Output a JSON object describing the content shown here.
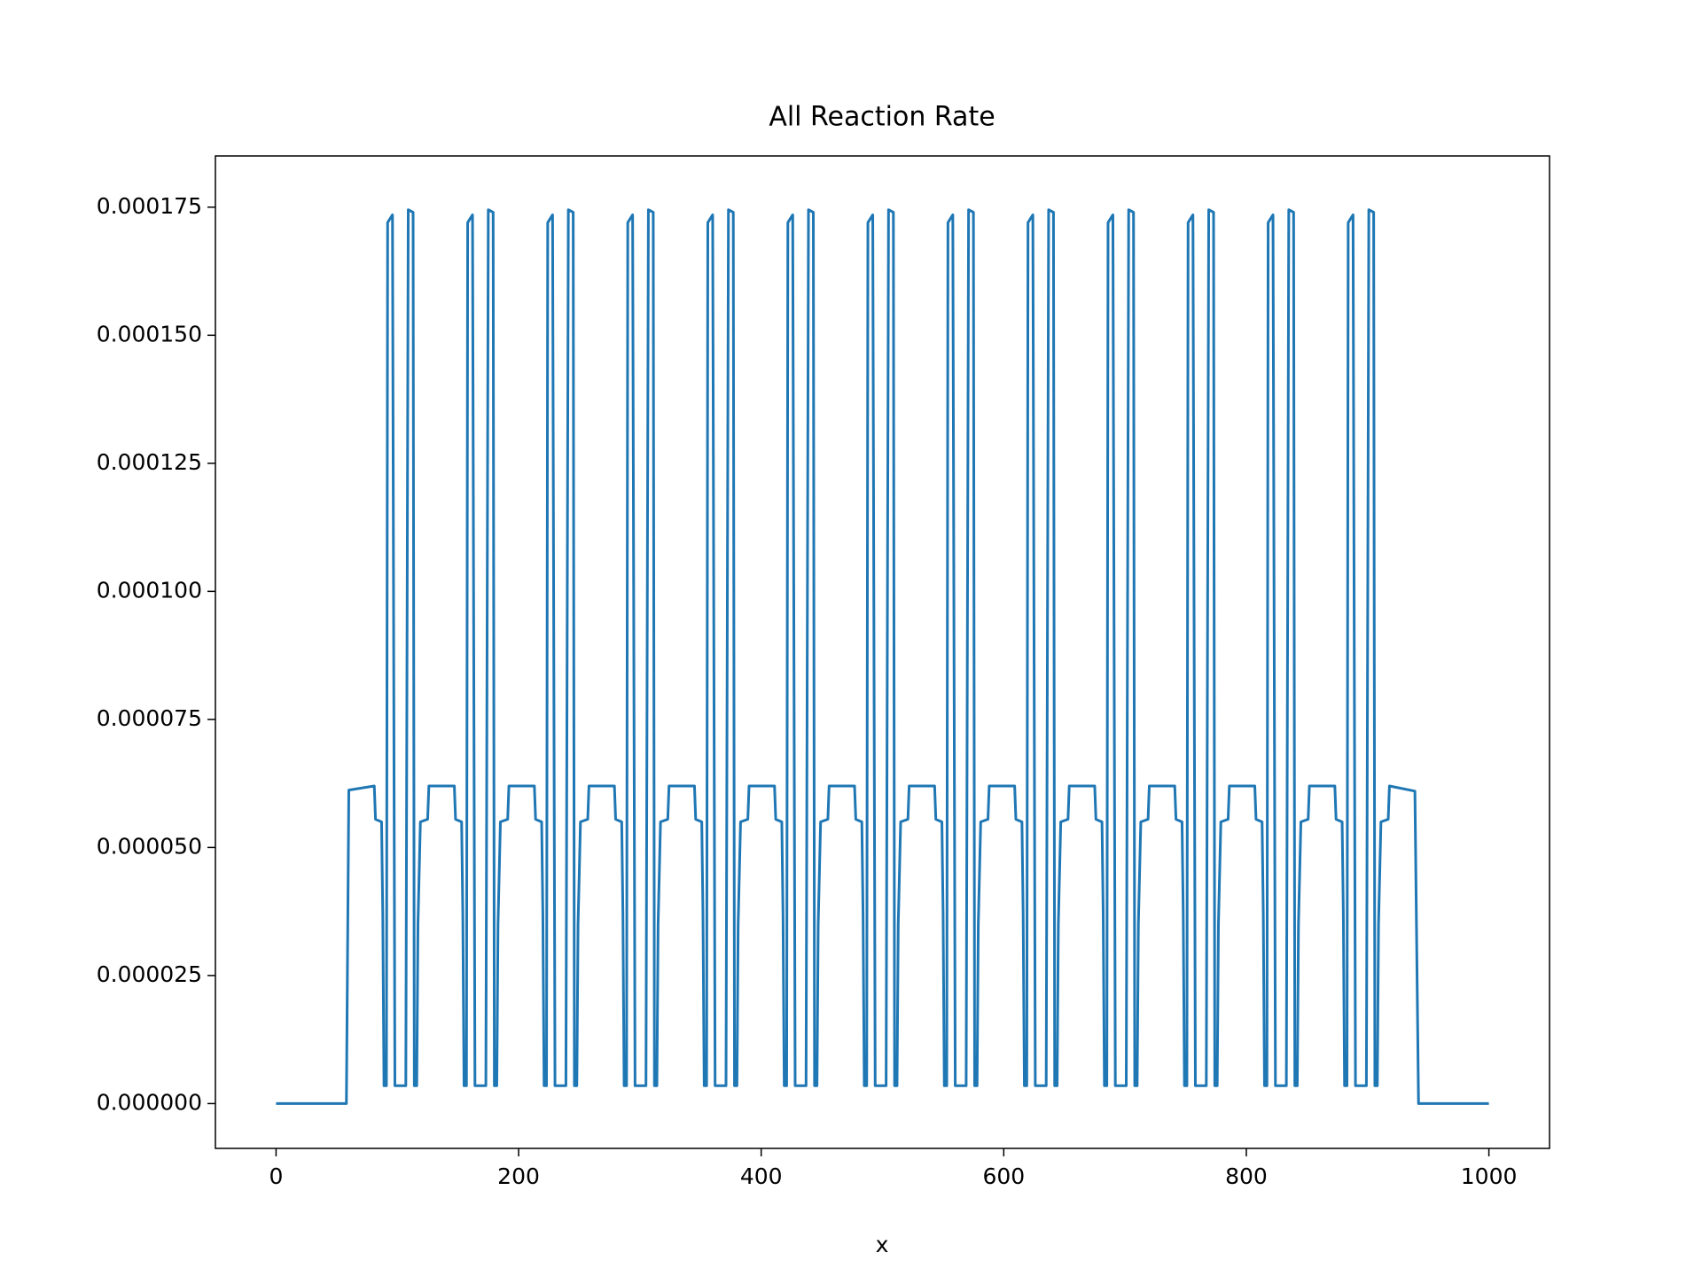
{
  "chart_data": {
    "type": "line",
    "title": "All Reaction Rate",
    "x_label": "x",
    "color": "#1f77b4",
    "x": [
      0,
      58,
      60,
      81,
      82,
      87,
      88,
      89,
      91,
      92,
      96,
      98,
      107,
      109,
      113,
      114,
      116,
      117,
      119,
      125,
      126,
      147,
      148,
      153,
      154,
      155,
      157,
      158,
      162,
      164,
      173,
      175,
      179,
      180,
      182,
      183,
      185,
      191,
      192,
      213,
      214,
      219,
      220,
      221,
      223,
      224,
      228,
      230,
      239,
      241,
      245,
      246,
      248,
      249,
      251,
      257,
      258,
      279,
      280,
      285,
      286,
      287,
      289,
      290,
      294,
      296,
      305,
      307,
      311,
      312,
      314,
      315,
      317,
      323,
      324,
      345,
      346,
      351,
      352,
      353,
      355,
      356,
      360,
      362,
      371,
      373,
      377,
      378,
      380,
      381,
      383,
      389,
      390,
      411,
      412,
      417,
      418,
      419,
      421,
      422,
      426,
      428,
      437,
      439,
      443,
      444,
      446,
      447,
      449,
      455,
      456,
      477,
      478,
      483,
      484,
      485,
      487,
      488,
      492,
      494,
      503,
      505,
      509,
      510,
      512,
      513,
      515,
      521,
      522,
      543,
      544,
      549,
      550,
      551,
      553,
      554,
      558,
      560,
      569,
      571,
      575,
      576,
      578,
      579,
      581,
      587,
      588,
      609,
      610,
      615,
      616,
      617,
      619,
      620,
      624,
      626,
      635,
      637,
      641,
      642,
      644,
      645,
      647,
      653,
      654,
      675,
      676,
      681,
      682,
      683,
      685,
      686,
      690,
      692,
      701,
      703,
      707,
      708,
      710,
      711,
      713,
      719,
      720,
      741,
      742,
      747,
      748,
      749,
      751,
      752,
      756,
      758,
      767,
      769,
      773,
      774,
      776,
      777,
      779,
      785,
      786,
      807,
      808,
      813,
      814,
      815,
      817,
      818,
      822,
      824,
      833,
      835,
      839,
      840,
      842,
      843,
      845,
      851,
      852,
      873,
      874,
      879,
      880,
      881,
      883,
      884,
      888,
      890,
      899,
      901,
      905,
      906,
      908,
      909,
      911,
      917,
      918,
      939,
      942,
      1000
    ],
    "values": [
      0,
      0,
      6.12e-05,
      6.2e-05,
      5.55e-05,
      5.5e-05,
      3.7e-05,
      3.5e-06,
      3.5e-06,
      0.000172,
      0.0001735,
      3.5e-06,
      3.5e-06,
      0.0001745,
      0.000174,
      3.5e-06,
      3.5e-06,
      3.5e-05,
      5.5e-05,
      5.55e-05,
      6.2e-05,
      6.2e-05,
      5.55e-05,
      5.5e-05,
      3.7e-05,
      3.5e-06,
      3.5e-06,
      0.000172,
      0.0001735,
      3.5e-06,
      3.5e-06,
      0.0001745,
      0.000174,
      3.5e-06,
      3.5e-06,
      3.5e-05,
      5.5e-05,
      5.55e-05,
      6.2e-05,
      6.2e-05,
      5.55e-05,
      5.5e-05,
      3.7e-05,
      3.5e-06,
      3.5e-06,
      0.000172,
      0.0001735,
      3.5e-06,
      3.5e-06,
      0.0001745,
      0.000174,
      3.5e-06,
      3.5e-06,
      3.5e-05,
      5.5e-05,
      5.55e-05,
      6.2e-05,
      6.2e-05,
      5.55e-05,
      5.5e-05,
      3.7e-05,
      3.5e-06,
      3.5e-06,
      0.000172,
      0.0001735,
      3.5e-06,
      3.5e-06,
      0.0001745,
      0.000174,
      3.5e-06,
      3.5e-06,
      3.5e-05,
      5.5e-05,
      5.55e-05,
      6.2e-05,
      6.2e-05,
      5.55e-05,
      5.5e-05,
      3.7e-05,
      3.5e-06,
      3.5e-06,
      0.000172,
      0.0001735,
      3.5e-06,
      3.5e-06,
      0.0001745,
      0.000174,
      3.5e-06,
      3.5e-06,
      3.5e-05,
      5.5e-05,
      5.55e-05,
      6.2e-05,
      6.2e-05,
      5.55e-05,
      5.5e-05,
      3.7e-05,
      3.5e-06,
      3.5e-06,
      0.000172,
      0.0001735,
      3.5e-06,
      3.5e-06,
      0.0001745,
      0.000174,
      3.5e-06,
      3.5e-06,
      3.5e-05,
      5.5e-05,
      5.55e-05,
      6.2e-05,
      6.2e-05,
      5.55e-05,
      5.5e-05,
      3.7e-05,
      3.5e-06,
      3.5e-06,
      0.000172,
      0.0001735,
      3.5e-06,
      3.5e-06,
      0.0001745,
      0.000174,
      3.5e-06,
      3.5e-06,
      3.5e-05,
      5.5e-05,
      5.55e-05,
      6.2e-05,
      6.2e-05,
      5.55e-05,
      5.5e-05,
      3.7e-05,
      3.5e-06,
      3.5e-06,
      0.000172,
      0.0001735,
      3.5e-06,
      3.5e-06,
      0.0001745,
      0.000174,
      3.5e-06,
      3.5e-06,
      3.5e-05,
      5.5e-05,
      5.55e-05,
      6.2e-05,
      6.2e-05,
      5.55e-05,
      5.5e-05,
      3.7e-05,
      3.5e-06,
      3.5e-06,
      0.000172,
      0.0001735,
      3.5e-06,
      3.5e-06,
      0.0001745,
      0.000174,
      3.5e-06,
      3.5e-06,
      3.5e-05,
      5.5e-05,
      5.55e-05,
      6.2e-05,
      6.2e-05,
      5.55e-05,
      5.5e-05,
      3.7e-05,
      3.5e-06,
      3.5e-06,
      0.000172,
      0.0001735,
      3.5e-06,
      3.5e-06,
      0.0001745,
      0.000174,
      3.5e-06,
      3.5e-06,
      3.5e-05,
      5.5e-05,
      5.55e-05,
      6.2e-05,
      6.2e-05,
      5.55e-05,
      5.5e-05,
      3.7e-05,
      3.5e-06,
      3.5e-06,
      0.000172,
      0.0001735,
      3.5e-06,
      3.5e-06,
      0.0001745,
      0.000174,
      3.5e-06,
      3.5e-06,
      3.5e-05,
      5.5e-05,
      5.55e-05,
      6.2e-05,
      6.2e-05,
      5.55e-05,
      5.5e-05,
      3.7e-05,
      3.5e-06,
      3.5e-06,
      0.000172,
      0.0001735,
      3.5e-06,
      3.5e-06,
      0.0001745,
      0.000174,
      3.5e-06,
      3.5e-06,
      3.5e-05,
      5.5e-05,
      5.55e-05,
      6.2e-05,
      6.2e-05,
      5.55e-05,
      5.5e-05,
      3.7e-05,
      3.5e-06,
      3.5e-06,
      0.000172,
      0.0001735,
      3.5e-06,
      3.5e-06,
      0.0001745,
      0.000174,
      3.5e-06,
      3.5e-06,
      3.5e-05,
      5.5e-05,
      5.55e-05,
      6.2e-05,
      6.1e-05,
      0,
      0
    ],
    "xlim": [
      -50,
      1050
    ],
    "xticks": [
      0,
      200,
      400,
      600,
      800,
      1000
    ],
    "ylim": [
      -8.75e-06,
      0.000185
    ],
    "yticks": [
      {
        "value": 0,
        "label": "0.000000"
      },
      {
        "value": 2.5e-05,
        "label": "0.000025"
      },
      {
        "value": 5e-05,
        "label": "0.000050"
      },
      {
        "value": 7.5e-05,
        "label": "0.000075"
      },
      {
        "value": 0.0001,
        "label": "0.000100"
      },
      {
        "value": 0.000125,
        "label": "0.000125"
      },
      {
        "value": 0.00015,
        "label": "0.000150"
      },
      {
        "value": 0.000175,
        "label": "0.000175"
      }
    ],
    "grid": false
  }
}
